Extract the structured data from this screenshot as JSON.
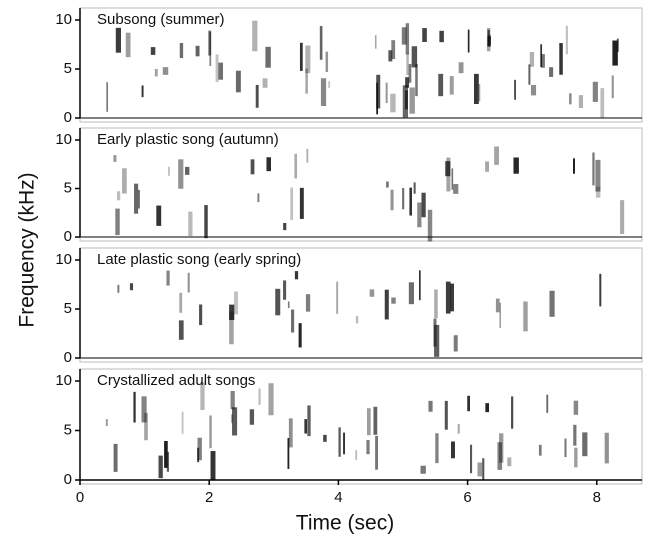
{
  "xlabel": "Time (sec)",
  "ylabel": "Frequency (kHz)",
  "chart_data": [
    {
      "type": "spectrogram",
      "title": "Subsong (summer)",
      "xlim": [
        0,
        8.7
      ],
      "ylim": [
        0,
        10
      ],
      "yticks": [
        0,
        5,
        10
      ]
    },
    {
      "type": "spectrogram",
      "title": "Early plastic song (autumn)",
      "xlim": [
        0,
        8.7
      ],
      "ylim": [
        0,
        10
      ],
      "yticks": [
        0,
        5,
        10
      ]
    },
    {
      "type": "spectrogram",
      "title": "Late plastic song (early spring)",
      "xlim": [
        0,
        8.7
      ],
      "ylim": [
        0,
        10
      ],
      "yticks": [
        0,
        5,
        10
      ]
    },
    {
      "type": "spectrogram",
      "title": "Crystallized adult songs",
      "xlim": [
        0,
        8.7
      ],
      "ylim": [
        0,
        10
      ],
      "yticks": [
        0,
        5,
        10
      ],
      "xticks": [
        0,
        2,
        4,
        6,
        8
      ]
    }
  ]
}
